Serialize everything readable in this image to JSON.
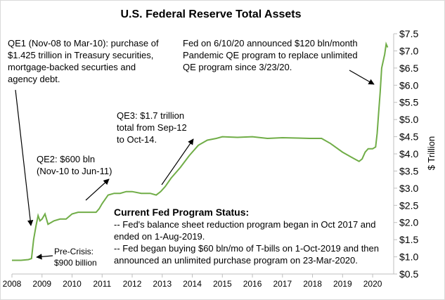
{
  "chart_data": {
    "type": "line",
    "title": "U.S. Federal Reserve Total Assets",
    "ylabel": "$ Trillion",
    "xlim": [
      2008,
      2020.7
    ],
    "ylim": [
      0.5,
      7.5
    ],
    "x_ticks": [
      "2008",
      "2009",
      "2010",
      "2011",
      "2012",
      "2013",
      "2014",
      "2015",
      "2016",
      "2017",
      "2018",
      "2019",
      "2020"
    ],
    "y_ticks": [
      "$0.5",
      "$1.0",
      "$1.5",
      "$2.0",
      "$2.5",
      "$3.0",
      "$3.5",
      "$4.0",
      "$4.5",
      "$5.0",
      "$5.5",
      "$6.0",
      "$6.5",
      "$7.0",
      "$7.5"
    ],
    "grid": false,
    "line_color": "#70ad47",
    "series": [
      {
        "x": [
          2008.0,
          2008.3,
          2008.55,
          2008.65,
          2008.72,
          2008.8,
          2008.87,
          2008.93,
          2009.0,
          2009.1,
          2009.2,
          2009.3,
          2009.4,
          2009.6,
          2009.8,
          2010.0,
          2010.2,
          2010.4,
          2010.6,
          2010.8,
          2010.9,
          2011.0,
          2011.2,
          2011.4,
          2011.6,
          2011.8,
          2012.0,
          2012.3,
          2012.6,
          2012.8,
          2012.95,
          2013.1,
          2013.3,
          2013.6,
          2013.9,
          2014.2,
          2014.5,
          2014.8,
          2015.0,
          2015.5,
          2016.0,
          2016.5,
          2017.0,
          2017.5,
          2017.9,
          2018.3,
          2018.6,
          2019.0,
          2019.3,
          2019.55,
          2019.65,
          2019.75,
          2019.85,
          2020.0,
          2020.1,
          2020.15,
          2020.2,
          2020.25,
          2020.3,
          2020.4,
          2020.45,
          2020.5
        ],
        "values": [
          0.9,
          0.9,
          0.92,
          0.95,
          1.5,
          1.9,
          2.2,
          2.05,
          2.1,
          2.25,
          1.95,
          2.0,
          2.05,
          2.1,
          2.1,
          2.25,
          2.3,
          2.3,
          2.3,
          2.3,
          2.4,
          2.55,
          2.8,
          2.85,
          2.85,
          2.9,
          2.9,
          2.85,
          2.85,
          2.8,
          2.9,
          3.05,
          3.3,
          3.6,
          3.95,
          4.25,
          4.4,
          4.45,
          4.5,
          4.48,
          4.5,
          4.45,
          4.47,
          4.46,
          4.45,
          4.45,
          4.3,
          4.05,
          3.9,
          3.78,
          3.85,
          4.05,
          4.15,
          4.15,
          4.2,
          4.6,
          5.2,
          5.8,
          6.5,
          6.9,
          7.2,
          7.1
        ]
      }
    ]
  },
  "annotations": {
    "qe1": "QE1 (Nov-08 to Mar-10): purchase of\n$1.425 trillion in Treasury securities,\nmortgage-backed securties and\nagency debt.",
    "qe2": "QE2: $600 bln\n(Nov-10 to Jun-11)",
    "qe3": "QE3:  $1.7 trillion\ntotal from Sep-12\nto Oct-14.",
    "precrisis": "Pre-Crisis:\n$900 billion",
    "fed_note": "Fed on 6/10/20 announced  $120 bln/month\nPandemic QE program to replace unlimited\nQE program  since 3/23/20.",
    "status_header": "Current Fed Program Status:",
    "status_line1": "-- Fed's balance sheet reduction program began in Oct 2017 and\nended on 1-Aug-2019.",
    "status_line2": "-- Fed began buying $60 bln/mo of T-bills on 1-Oct-2019 and then\nannounced an unlimited purchase program on 23-Mar-2020."
  }
}
